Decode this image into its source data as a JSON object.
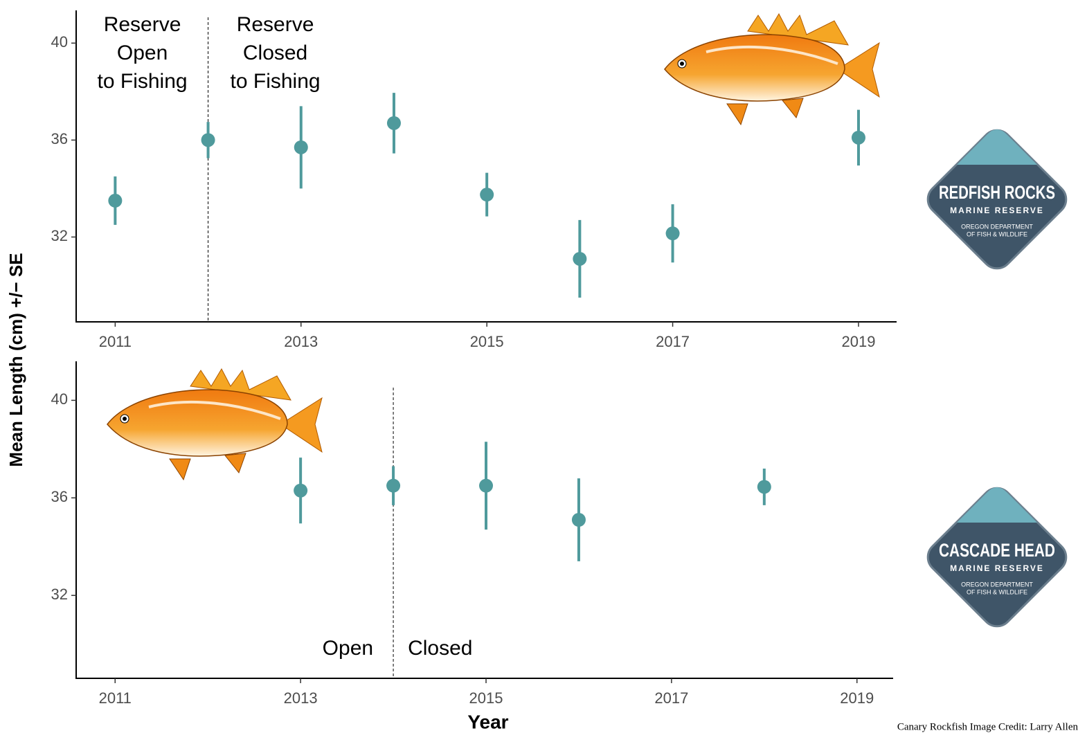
{
  "y_label": "Mean Length (cm) +/− SE",
  "x_label": "Year",
  "credit": "Canary Rockfish Image Credit: Larry Allen",
  "logos": [
    {
      "name": "REDFISH ROCKS",
      "subtitle": "MARINE RESERVE",
      "agency": [
        "OREGON DEPARTMENT",
        "OF FISH & WILDLIFE"
      ]
    },
    {
      "name": "CASCADE HEAD",
      "subtitle": "MARINE RESERVE",
      "agency": [
        "OREGON DEPARTMENT",
        "OF FISH & WILDLIFE"
      ]
    }
  ],
  "chart_data": [
    {
      "type": "errorbar",
      "color": "#4f9a9c",
      "x": [
        2011,
        2012,
        2013,
        2014,
        2015,
        2016,
        2017,
        2019
      ],
      "values": [
        33.5,
        36.0,
        35.7,
        36.7,
        33.75,
        31.1,
        32.15,
        36.1
      ],
      "errors": [
        1.0,
        0.75,
        1.7,
        1.25,
        0.9,
        1.6,
        1.2,
        1.15
      ],
      "xlim": [
        2010.58,
        2019.41
      ],
      "ylim": [
        28.5,
        41.35
      ],
      "xticks": [
        2011,
        2013,
        2015,
        2017,
        2019
      ],
      "yticks": [
        32,
        36,
        40
      ],
      "closure_year": 2012,
      "annotations": [
        [
          "Reserve",
          "Open",
          "to Fishing"
        ],
        [
          "Reserve",
          "Closed",
          "to Fishing"
        ]
      ]
    },
    {
      "type": "errorbar",
      "color": "#4f9a9c",
      "x": [
        2013,
        2014,
        2015,
        2016,
        2018
      ],
      "values": [
        36.3,
        36.5,
        36.5,
        35.1,
        36.45
      ],
      "errors": [
        1.35,
        0.8,
        1.8,
        1.7,
        0.75
      ],
      "xlim": [
        2010.58,
        2019.39
      ],
      "ylim": [
        28.6,
        41.6
      ],
      "xticks": [
        2011,
        2013,
        2015,
        2017,
        2019
      ],
      "yticks": [
        32,
        36,
        40
      ],
      "closure_year": 2014,
      "annotations": [
        [
          "Open"
        ],
        [
          "Closed"
        ]
      ]
    }
  ]
}
